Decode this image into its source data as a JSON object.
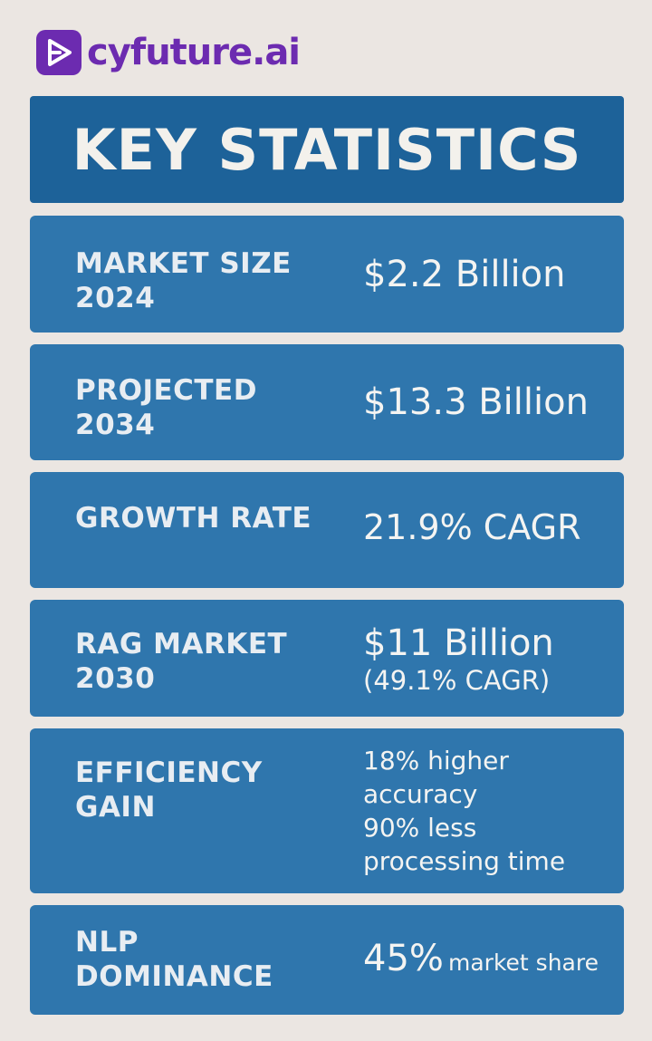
{
  "brand": {
    "name": "cyfuture.ai",
    "logo_icon": "play-arrow-icon",
    "colors": {
      "brand": "#6c2bb0",
      "title_bg": "#1d6299",
      "card_bg": "#2f76ad",
      "page_bg": "#ebe6e2"
    }
  },
  "title": "KEY STATISTICS",
  "stats": [
    {
      "label_line1": "MARKET SIZE",
      "label_line2": "2024",
      "value": "$2.2 Billion"
    },
    {
      "label_line1": "PROJECTED",
      "label_line2": "2034",
      "value": "$13.3 Billion"
    },
    {
      "label_line1": "GROWTH RATE",
      "value": "21.9% CAGR"
    },
    {
      "label_line1": "RAG MARKET",
      "label_line2": "2030",
      "value": "$11 Billion",
      "value_sub": "(49.1% CAGR)"
    },
    {
      "label_line1": "EFFICIENCY",
      "label_line2": "GAIN",
      "value_lines": [
        "18% higher",
        "accuracy",
        "90% less",
        "processing time"
      ]
    },
    {
      "label_line1": "NLP",
      "label_line2": "DOMINANCE",
      "value_big": "45%",
      "value_small": "market share"
    }
  ]
}
